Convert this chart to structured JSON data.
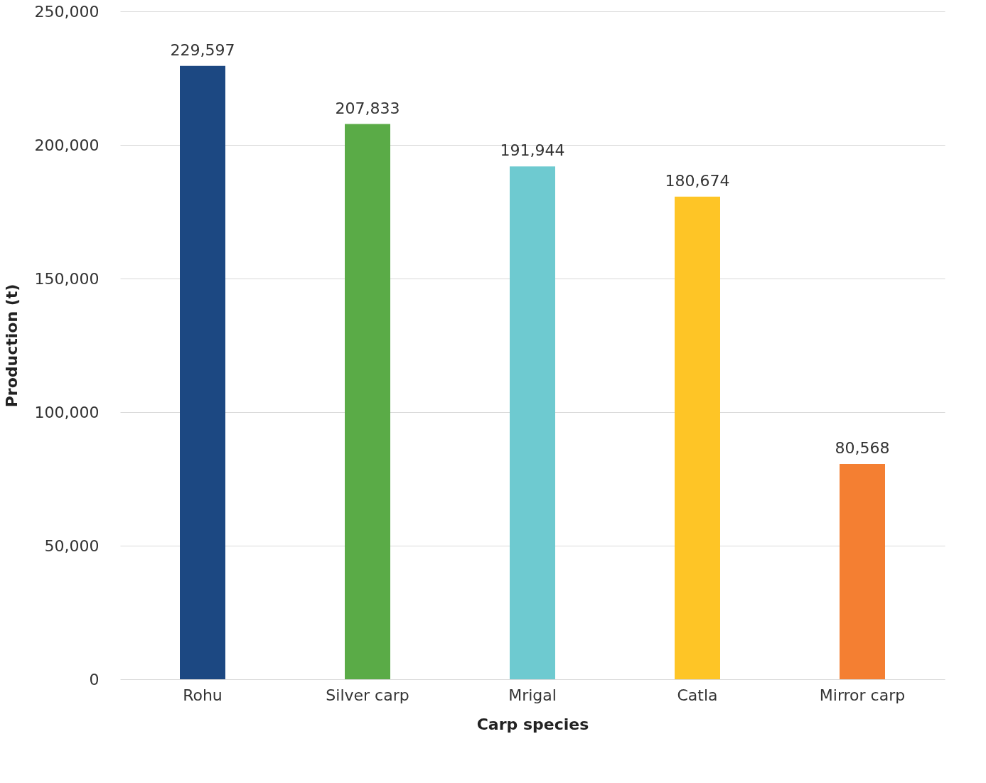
{
  "chart_data": {
    "type": "bar",
    "xlabel": "Carp species",
    "ylabel": "Production (t)",
    "categories": [
      "Rohu",
      "Silver carp",
      "Mrigal",
      "Catla",
      "Mirror carp"
    ],
    "values": [
      229597,
      207833,
      191944,
      180674,
      80568
    ],
    "value_labels": [
      "229,597",
      "207,833",
      "191,944",
      "180,674",
      "80,568"
    ],
    "colors": [
      "#1c4882",
      "#5aab47",
      "#6ecad0",
      "#fec526",
      "#f47f32"
    ],
    "ylim": [
      0,
      250000
    ],
    "yticks": [
      0,
      {
        "value": 50000,
        "label": "50,000"
      },
      {
        "value": 100000,
        "label": "100,000"
      },
      {
        "value": 150000,
        "label": "150,000"
      },
      {
        "value": 200000,
        "label": "200,000"
      },
      {
        "value": 250000,
        "label": "250,000"
      }
    ],
    "grid": "y"
  }
}
